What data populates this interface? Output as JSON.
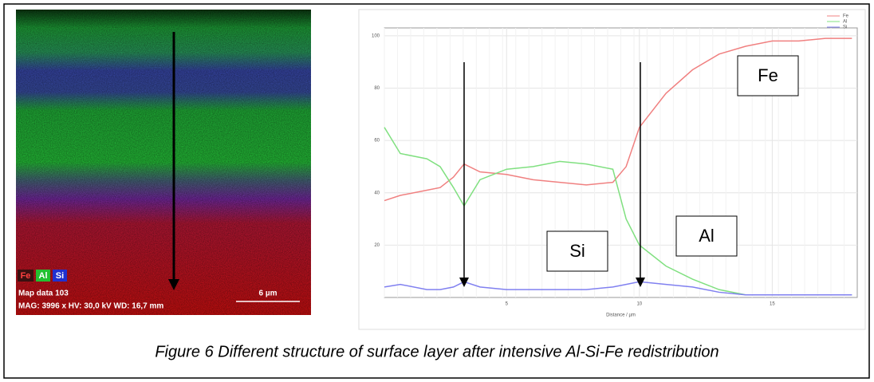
{
  "map": {
    "legend": [
      "Fe",
      "Al",
      "Si"
    ],
    "label": "Map data 103",
    "info": "MAG: 3996 x HV: 30,0 kV WD: 16,7 mm",
    "scale_bar": "6 µm"
  },
  "chart_data": {
    "type": "line",
    "xlabel": "Distance / µm",
    "x": [
      0.4,
      1,
      2,
      2.5,
      3,
      3.4,
      4,
      5,
      6,
      7,
      8,
      9,
      9.5,
      10,
      11,
      12,
      13,
      14,
      15,
      16,
      17,
      18
    ],
    "series": [
      {
        "name": "Fe",
        "color": "#f08080",
        "values": [
          37,
          39,
          41,
          42,
          46,
          51,
          48,
          47,
          45,
          44,
          43,
          44,
          50,
          65,
          78,
          87,
          93,
          96,
          98,
          98,
          99,
          99
        ]
      },
      {
        "name": "Al",
        "color": "#80e080",
        "values": [
          65,
          55,
          53,
          50,
          42,
          35,
          45,
          49,
          50,
          52,
          51,
          49,
          30,
          20,
          12,
          7,
          3,
          1,
          1,
          1,
          1,
          1
        ]
      },
      {
        "name": "Si",
        "color": "#8080f0",
        "values": [
          4,
          5,
          3,
          3,
          4,
          6,
          4,
          3,
          3,
          3,
          3,
          4,
          5,
          6,
          5,
          4,
          2,
          1,
          1,
          1,
          1,
          1
        ]
      }
    ],
    "xlim": [
      0.4,
      18.2
    ],
    "ylim": [
      0,
      103
    ],
    "xticks": [
      5,
      10,
      15
    ],
    "yticks": [
      20,
      40,
      60,
      80,
      100
    ],
    "grid": true,
    "annotations": [
      "Fe",
      "Al",
      "Si"
    ]
  },
  "caption": "Figure 6 Different structure of surface layer after intensive Al-Si-Fe redistribution"
}
